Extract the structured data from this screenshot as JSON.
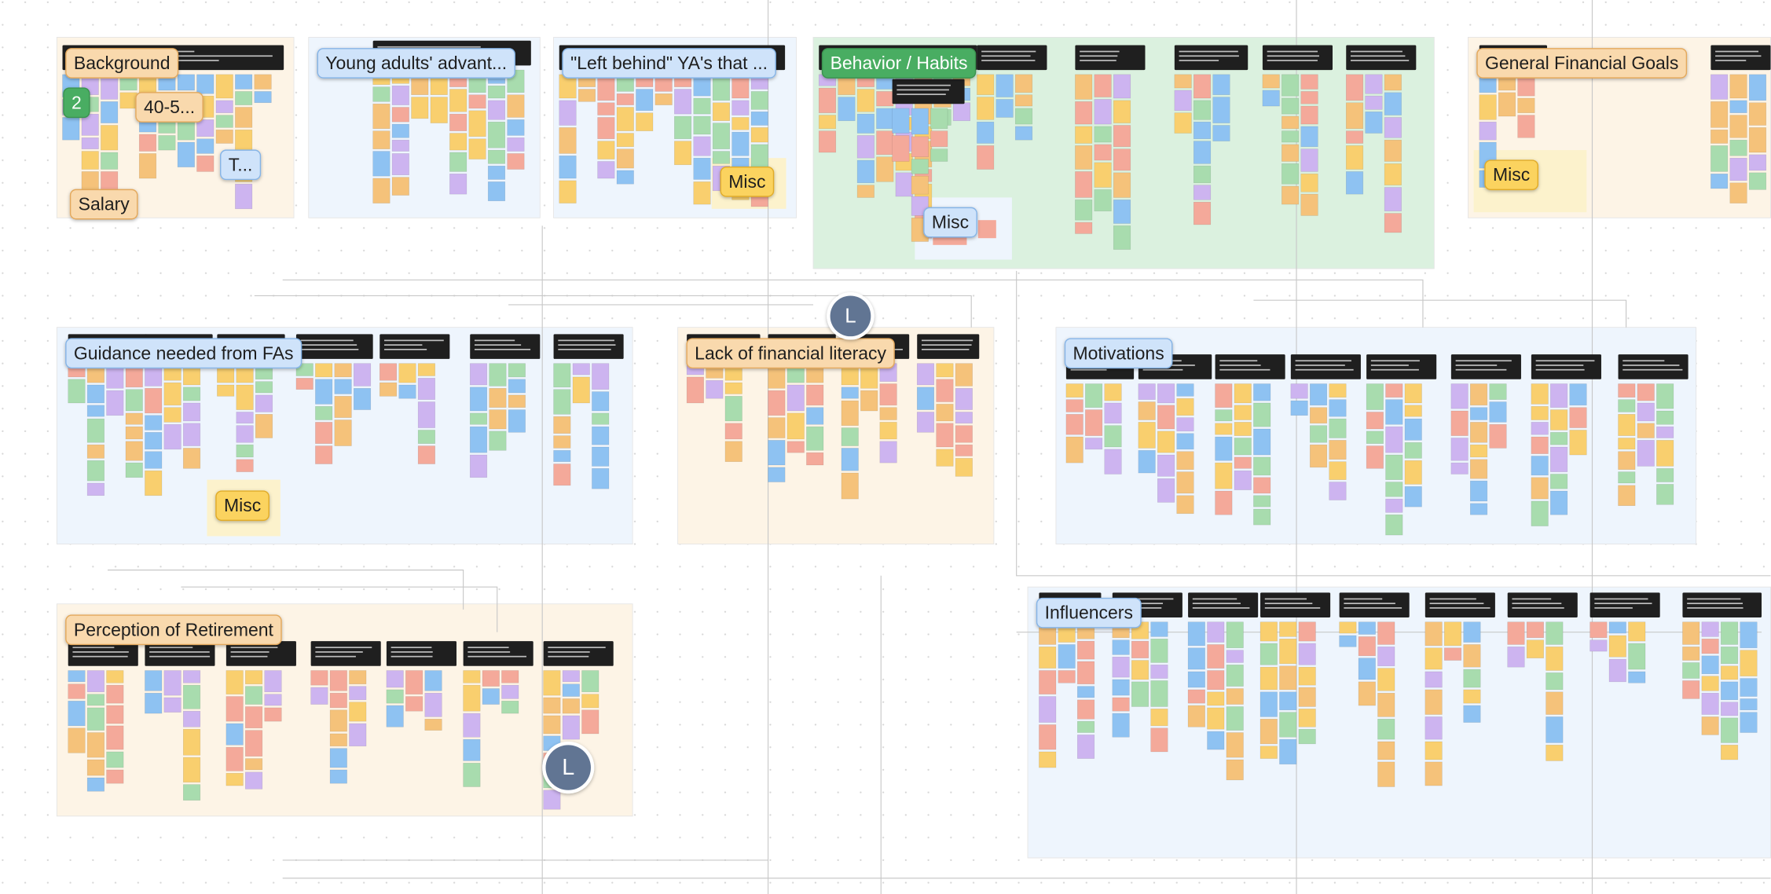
{
  "sections": [
    {
      "label": "Background"
    },
    {
      "label": "Young adults' advant..."
    },
    {
      "label": "\"Left behind\" YA's that ..."
    },
    {
      "label": "Behavior / Habits"
    },
    {
      "label": "General Financial Goals"
    },
    {
      "label": "Guidance needed from FAs"
    },
    {
      "label": "Lack of financial literacy"
    },
    {
      "label": "Motivations"
    },
    {
      "label": "Perception of Retirement"
    },
    {
      "label": "Influencers"
    }
  ],
  "sublabels": [
    {
      "label": "2"
    },
    {
      "label": "40-5..."
    },
    {
      "label": "Salary"
    },
    {
      "label": "T..."
    }
  ],
  "misc": [
    {
      "label": "Misc"
    },
    {
      "label": "Misc"
    },
    {
      "label": "Misc"
    },
    {
      "label": "Misc"
    }
  ],
  "avatars": [
    {
      "label": "L"
    },
    {
      "label": "L"
    }
  ]
}
